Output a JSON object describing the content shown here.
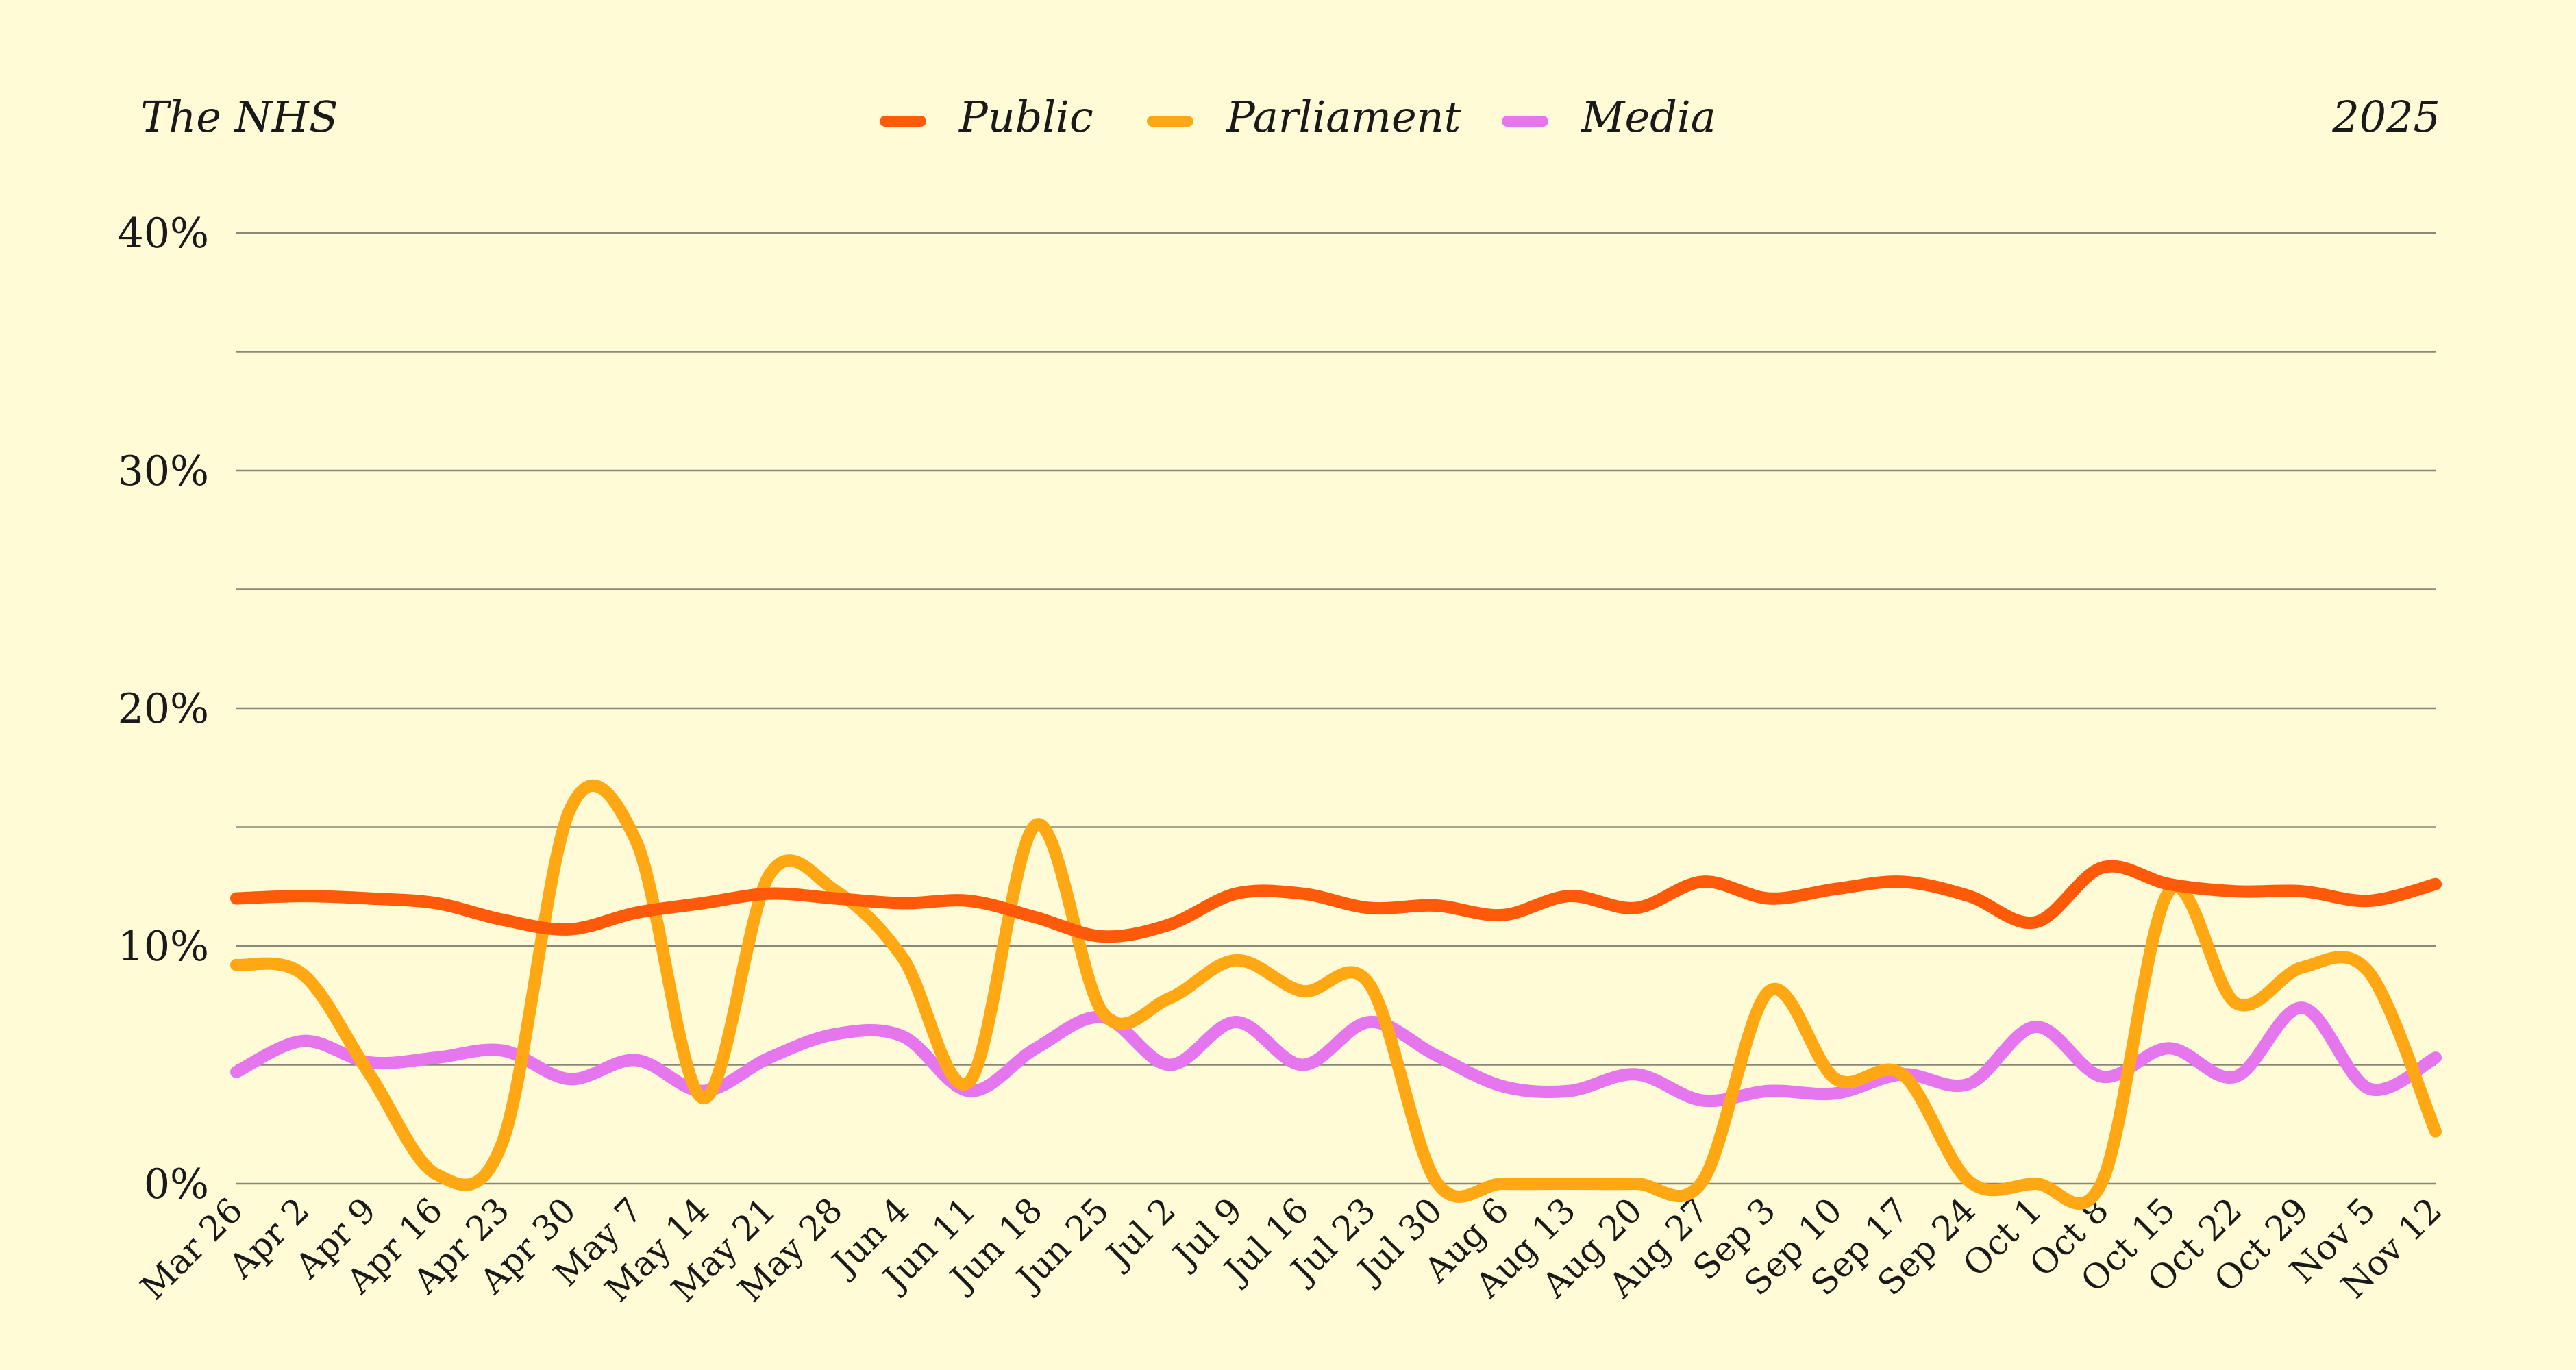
{
  "header": {
    "title": "The NHS",
    "year": "2025"
  },
  "chart_data": {
    "type": "line",
    "title": "The NHS",
    "xlabel": "",
    "ylabel": "",
    "ylim": [
      0,
      40
    ],
    "yticks": [
      0,
      10,
      20,
      30,
      40
    ],
    "ytick_labels": [
      "0%",
      "10%",
      "20%",
      "30%",
      "40%"
    ],
    "grid": true,
    "legend_position": "top-center",
    "categories": [
      "Mar 26",
      "Apr 2",
      "Apr 9",
      "Apr 16",
      "Apr 23",
      "Apr 30",
      "May 7",
      "May 14",
      "May 21",
      "May 28",
      "Jun 4",
      "Jun 11",
      "Jun 18",
      "Jun 25",
      "Jul 2",
      "Jul 9",
      "Jul 16",
      "Jul 23",
      "Jul 30",
      "Aug 6",
      "Aug 13",
      "Aug 20",
      "Aug 27",
      "Sep 3",
      "Sep 10",
      "Sep 17",
      "Sep 24",
      "Oct 1",
      "Oct 8",
      "Oct 15",
      "Oct 22",
      "Oct 29",
      "Nov 5",
      "Nov 12"
    ],
    "series": [
      {
        "name": "Public",
        "color": "#ff5a0a",
        "values": [
          12.0,
          12.1,
          12.0,
          11.8,
          11.1,
          10.7,
          11.4,
          11.8,
          12.2,
          12.0,
          11.8,
          11.9,
          11.2,
          10.4,
          10.9,
          12.2,
          12.2,
          11.6,
          11.7,
          11.3,
          12.1,
          11.6,
          12.7,
          12.0,
          12.4,
          12.7,
          12.1,
          11.0,
          13.3,
          12.6,
          12.3,
          12.3,
          11.9,
          12.6
        ]
      },
      {
        "name": "Parliament",
        "color": "#ffa814",
        "values": [
          9.2,
          8.8,
          4.6,
          0.4,
          1.8,
          15.7,
          14.4,
          3.6,
          13.0,
          12.3,
          9.5,
          4.3,
          15.1,
          7.2,
          7.8,
          9.4,
          8.1,
          8.4,
          0.1,
          0.0,
          0.0,
          0.0,
          0.1,
          8.1,
          4.4,
          4.6,
          0.1,
          0.0,
          0.1,
          12.3,
          7.6,
          9.1,
          8.9,
          2.2
        ]
      },
      {
        "name": "Media",
        "color": "#e676ee",
        "values": [
          4.7,
          6.0,
          5.1,
          5.3,
          5.6,
          4.4,
          5.2,
          3.9,
          5.3,
          6.3,
          6.2,
          3.9,
          5.7,
          7.0,
          5.0,
          6.8,
          5.0,
          6.8,
          5.4,
          4.1,
          3.9,
          4.6,
          3.5,
          3.9,
          3.8,
          4.6,
          4.2,
          6.6,
          4.5,
          5.7,
          4.5,
          7.4,
          4.0,
          5.3
        ]
      }
    ]
  }
}
